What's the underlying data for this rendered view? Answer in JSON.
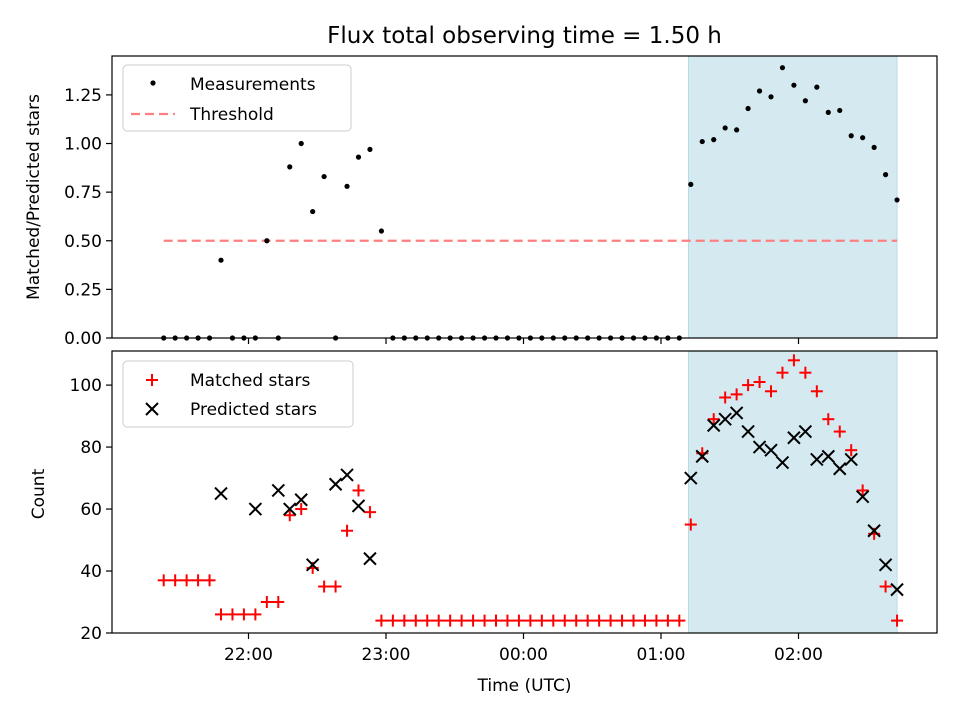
{
  "title": "Flux total observing time = 1.50 h",
  "chart_data": [
    {
      "type": "scatter",
      "ylabel": "Matched/Predicted stars",
      "xlabel": "",
      "ylim": [
        0,
        1.45
      ],
      "yticks": [
        0.0,
        0.25,
        0.5,
        0.75,
        1.0,
        1.25
      ],
      "ytick_labels": [
        "0.00",
        "0.25",
        "0.50",
        "0.75",
        "1.00",
        "1.25"
      ],
      "highlight_span": {
        "start": "01:12",
        "end": "02:43",
        "color": "#d4eaf0"
      },
      "legend": {
        "position": "top-left",
        "entries": [
          "Measurements",
          "Threshold"
        ]
      },
      "threshold": {
        "name": "Threshold",
        "value": 0.5,
        "x_start": "21:23",
        "x_end": "02:43",
        "color": "#ff7f7f"
      },
      "series": [
        {
          "name": "Measurements",
          "marker": "dot",
          "color": "#000000",
          "x": [
            "21:23",
            "21:28",
            "21:33",
            "21:38",
            "21:43",
            "21:48",
            "21:53",
            "21:58",
            "22:03",
            "22:08",
            "22:13",
            "22:18",
            "22:23",
            "22:28",
            "22:33",
            "22:38",
            "22:43",
            "22:48",
            "22:53",
            "22:58",
            "23:03",
            "23:08",
            "23:13",
            "23:18",
            "23:23",
            "23:28",
            "23:33",
            "23:38",
            "23:43",
            "23:48",
            "23:53",
            "23:58",
            "00:03",
            "00:08",
            "00:13",
            "00:18",
            "00:23",
            "00:28",
            "00:33",
            "00:38",
            "00:43",
            "00:48",
            "00:53",
            "00:58",
            "01:03",
            "01:08",
            "01:13",
            "01:18",
            "01:23",
            "01:28",
            "01:33",
            "01:38",
            "01:43",
            "01:48",
            "01:53",
            "01:58",
            "02:03",
            "02:08",
            "02:13",
            "02:18",
            "02:23",
            "02:28",
            "02:33",
            "02:38",
            "02:43"
          ],
          "y": [
            0,
            0,
            0,
            0,
            0,
            0.4,
            0,
            0,
            0,
            0.5,
            0,
            0.88,
            1.0,
            0.65,
            0.83,
            0,
            0.78,
            0.93,
            0.97,
            0.55,
            0,
            0,
            0,
            0,
            0,
            0,
            0,
            0,
            0,
            0,
            0,
            0,
            0,
            0,
            0,
            0,
            0,
            0,
            0,
            0,
            0,
            0,
            0,
            0,
            0,
            0,
            0.79,
            1.01,
            1.02,
            1.08,
            1.07,
            1.18,
            1.27,
            1.24,
            1.39,
            1.3,
            1.22,
            1.29,
            1.16,
            1.17,
            1.04,
            1.03,
            0.98,
            0.84,
            0.71
          ]
        }
      ]
    },
    {
      "type": "scatter",
      "ylabel": "Count",
      "xlabel": "Time (UTC)",
      "ylim": [
        20,
        111
      ],
      "yticks": [
        20,
        40,
        60,
        80,
        100
      ],
      "ytick_labels": [
        "20",
        "40",
        "60",
        "80",
        "100"
      ],
      "xticks": [
        "22:00",
        "23:00",
        "00:00",
        "01:00",
        "02:00"
      ],
      "highlight_span": {
        "start": "01:12",
        "end": "02:43",
        "color": "#d4eaf0"
      },
      "legend": {
        "position": "top-left",
        "entries": [
          "Matched stars",
          "Predicted stars"
        ]
      },
      "series": [
        {
          "name": "Matched stars",
          "marker": "plus",
          "color": "#ff0000",
          "x": [
            "21:23",
            "21:28",
            "21:33",
            "21:38",
            "21:43",
            "21:48",
            "21:53",
            "21:58",
            "22:03",
            "22:08",
            "22:13",
            "22:18",
            "22:23",
            "22:28",
            "22:33",
            "22:38",
            "22:43",
            "22:48",
            "22:53",
            "22:58",
            "23:03",
            "23:08",
            "23:13",
            "23:18",
            "23:23",
            "23:28",
            "23:33",
            "23:38",
            "23:43",
            "23:48",
            "23:53",
            "23:58",
            "00:03",
            "00:08",
            "00:13",
            "00:18",
            "00:23",
            "00:28",
            "00:33",
            "00:38",
            "00:43",
            "00:48",
            "00:53",
            "00:58",
            "01:03",
            "01:08",
            "01:13",
            "01:18",
            "01:23",
            "01:28",
            "01:33",
            "01:38",
            "01:43",
            "01:48",
            "01:53",
            "01:58",
            "02:03",
            "02:08",
            "02:13",
            "02:18",
            "02:23",
            "02:28",
            "02:33",
            "02:38",
            "02:43"
          ],
          "y": [
            37,
            37,
            37,
            37,
            37,
            26,
            26,
            26,
            26,
            30,
            30,
            58,
            60,
            41,
            35,
            35,
            53,
            66,
            59,
            24,
            24,
            24,
            24,
            24,
            24,
            24,
            24,
            24,
            24,
            24,
            24,
            24,
            24,
            24,
            24,
            24,
            24,
            24,
            24,
            24,
            24,
            24,
            24,
            24,
            24,
            24,
            55,
            78,
            89,
            96,
            97,
            100,
            101,
            98,
            104,
            108,
            104,
            98,
            89,
            85,
            79,
            66,
            52,
            35,
            24
          ]
        },
        {
          "name": "Predicted stars",
          "marker": "x",
          "color": "#000000",
          "x": [
            "21:48",
            "22:03",
            "22:13",
            "22:18",
            "22:23",
            "22:28",
            "22:38",
            "22:43",
            "22:48",
            "22:53",
            "23:13",
            "01:13",
            "01:18",
            "01:23",
            "01:28",
            "01:33",
            "01:38",
            "01:43",
            "01:48",
            "01:53",
            "01:58",
            "02:03",
            "02:08",
            "02:13",
            "02:18",
            "02:23",
            "02:28",
            "02:33",
            "02:38",
            "02:43"
          ],
          "y": [
            65,
            60,
            66,
            60,
            63,
            42,
            68,
            71,
            61,
            44,
            null,
            70,
            77,
            87,
            89,
            91,
            85,
            80,
            79,
            75,
            83,
            85,
            76,
            77,
            73,
            76,
            64,
            53,
            42,
            34
          ]
        }
      ]
    }
  ]
}
